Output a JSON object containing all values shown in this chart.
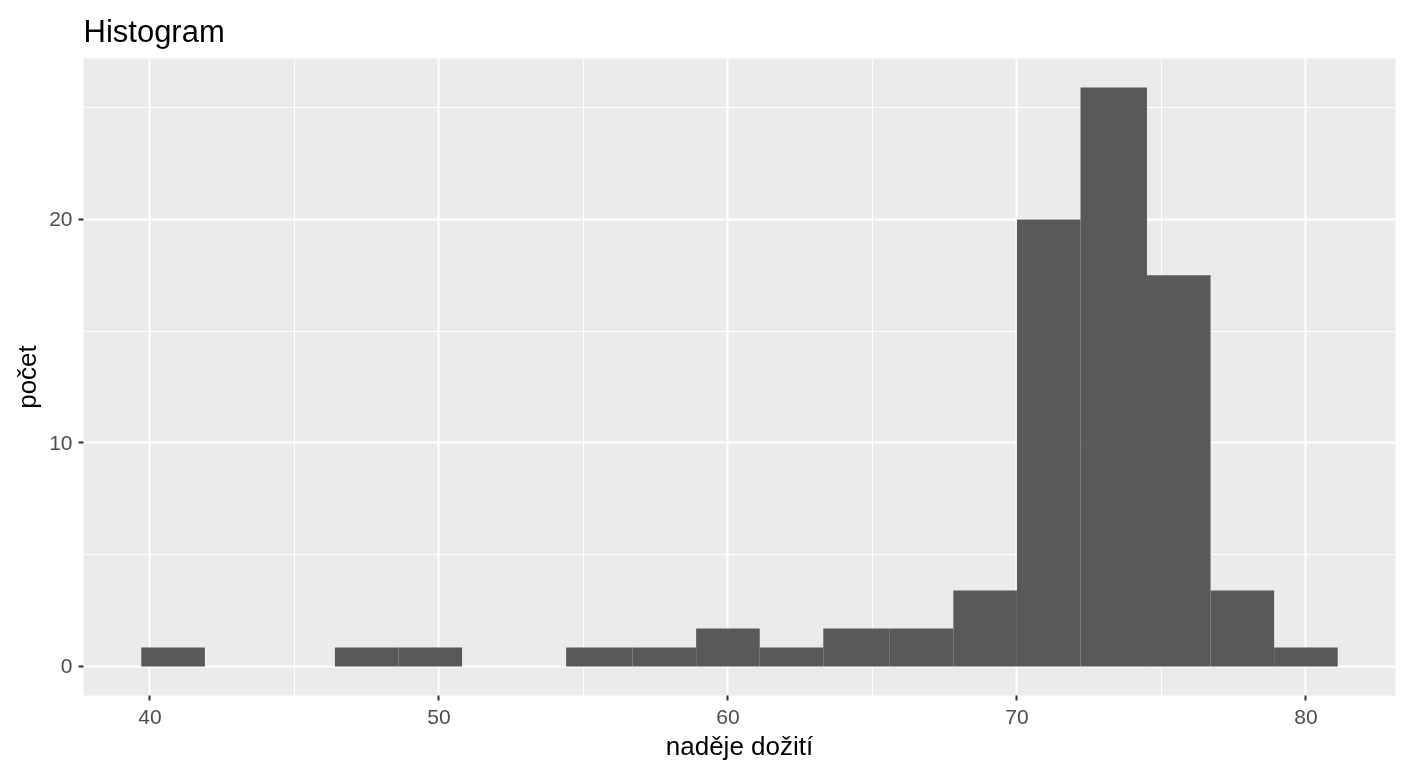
{
  "chart_data": {
    "type": "histogram",
    "title": "Histogram",
    "xlabel": "naděje dožití",
    "ylabel": "počet",
    "bins": [
      39.7,
      41.9,
      46.4,
      48.6,
      50.8,
      54.4,
      56.7,
      58.9,
      61.1,
      63.3,
      65.6,
      67.8,
      70.0,
      72.2,
      74.5,
      76.7,
      78.9,
      81.1
    ],
    "values": [
      0.85,
      0,
      0.85,
      0.85,
      0,
      0.85,
      0.85,
      1.7,
      0.85,
      1.7,
      1.7,
      3.4,
      20,
      25.9,
      17.5,
      3.4,
      0.85
    ],
    "color": "#595959",
    "xlim": [
      37.7,
      83.1
    ],
    "ylim": [
      -1.3,
      27.2
    ],
    "xticks": [
      40,
      50,
      60,
      70,
      80
    ],
    "yticks": [
      0,
      10,
      20
    ],
    "grid": true
  }
}
